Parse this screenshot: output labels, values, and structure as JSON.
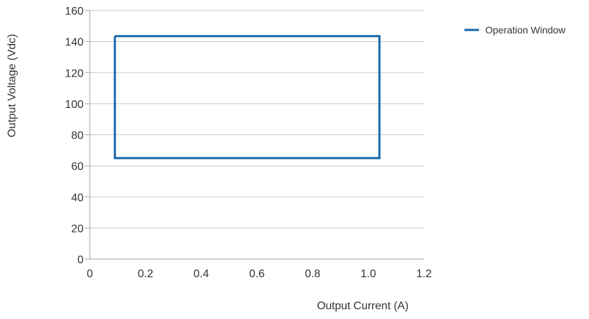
{
  "chart_data": {
    "type": "line",
    "title": "",
    "xlabel": "Output Current (A)",
    "ylabel": "Output Voltage (Vdc)",
    "xlim": [
      0,
      1.2
    ],
    "ylim": [
      0,
      160
    ],
    "x_ticks": [
      "0",
      "0.2",
      "0.4",
      "0.6",
      "0.8",
      "1.0",
      "1.2"
    ],
    "y_ticks": [
      "0",
      "20",
      "40",
      "60",
      "80",
      "100",
      "120",
      "140",
      "160"
    ],
    "grid": "horizontal",
    "legend_position": "right",
    "series": [
      {
        "name": "Operation Window",
        "color": "#1565a8",
        "x": [
          0.09,
          1.04,
          1.04,
          0.09,
          0.09
        ],
        "y": [
          143.5,
          143.5,
          65,
          65,
          143.5
        ]
      }
    ]
  },
  "colors": {
    "grid": "#c8c8c8",
    "axis": "#a0a0a0"
  }
}
